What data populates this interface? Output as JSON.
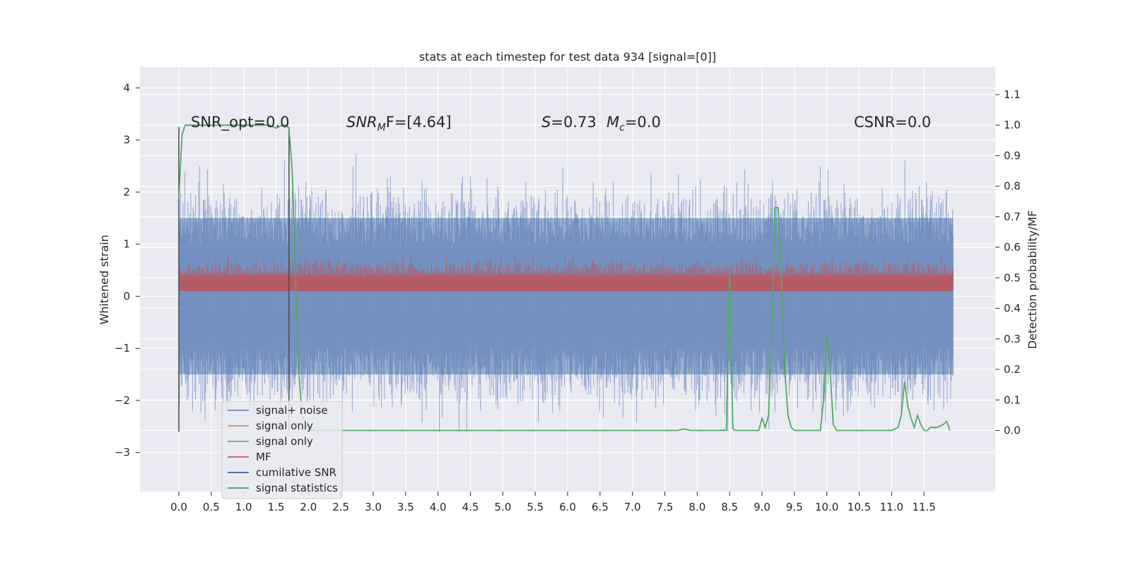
{
  "chart_data": {
    "type": "line",
    "title": "stats at each timestep for test data 934 [signal=[0]]",
    "ylabel": "Whitened strain",
    "ylabel_right": "Detection probability/MF",
    "xlim": [
      -0.6,
      12.6
    ],
    "ylim": [
      -3.75,
      4.4
    ],
    "ylim_right": [
      -0.2,
      1.19
    ],
    "x_ticks": [
      "0.0",
      "0.5",
      "1.0",
      "1.5",
      "2.0",
      "2.5",
      "3.0",
      "3.5",
      "4.0",
      "4.5",
      "5.0",
      "5.5",
      "6.0",
      "6.5",
      "7.0",
      "7.5",
      "8.0",
      "8.5",
      "9.0",
      "9.5",
      "10.0",
      "10.5",
      "11.0",
      "11.5"
    ],
    "y_ticks": [
      "4",
      "3",
      "2",
      "1",
      "0",
      "−1",
      "−2",
      "−3"
    ],
    "y_ticks_right": [
      "1.1",
      "1.0",
      "0.9",
      "0.8",
      "0.7",
      "0.6",
      "0.5",
      "0.4",
      "0.3",
      "0.2",
      "0.1",
      "0.0"
    ],
    "grid": true,
    "legend_position": "lower-left",
    "annotations": {
      "snr_opt": "SNR_opt=0.0",
      "snr_mf_base": "SNR",
      "snr_mf_sub": "M",
      "snr_mf_rest": "F=[4.64]",
      "s_label": "S",
      "s_value": "=0.73",
      "mc_base": "M",
      "mc_sub": "c",
      "mc_value": "=0.0",
      "csnr": "CSNR=0.0"
    },
    "series": [
      {
        "name": "signal+ noise",
        "color": "#4c72b0",
        "description_range": [
          -2.6,
          4.1
        ],
        "noise_amplitude": 1.5
      },
      {
        "name": "signal only",
        "color": "#dd8452"
      },
      {
        "name": "signal only",
        "color": "#55a868"
      },
      {
        "name": "MF",
        "color": "#c44e52",
        "band_range": [
          0.1,
          0.85
        ]
      },
      {
        "name": "cumilative SNR",
        "color": "#4c72b0"
      },
      {
        "name": "signal statistics",
        "color": "#55a868",
        "x": [
          0.0,
          0.05,
          0.1,
          0.3,
          0.5,
          0.8,
          1.0,
          1.2,
          1.4,
          1.5,
          1.6,
          1.65,
          1.7,
          1.75,
          1.8,
          1.85,
          1.9,
          2.0,
          3.0,
          4.0,
          5.0,
          6.0,
          7.0,
          7.7,
          7.8,
          7.9,
          8.0,
          8.3,
          8.45,
          8.5,
          8.55,
          8.6,
          8.8,
          8.95,
          9.0,
          9.05,
          9.1,
          9.15,
          9.2,
          9.25,
          9.3,
          9.35,
          9.4,
          9.45,
          9.5,
          9.6,
          9.7,
          9.8,
          9.9,
          9.95,
          10.0,
          10.05,
          10.1,
          10.15,
          10.2,
          10.3,
          10.5,
          10.8,
          11.0,
          11.1,
          11.15,
          11.2,
          11.25,
          11.3,
          11.35,
          11.4,
          11.45,
          11.5,
          11.55,
          11.6,
          11.7,
          11.8,
          11.85,
          11.9
        ],
        "values": [
          0.76,
          0.97,
          1.0,
          1.0,
          1.0,
          1.0,
          1.0,
          1.0,
          1.0,
          0.99,
          1.0,
          1.0,
          0.99,
          0.85,
          0.5,
          0.2,
          0.05,
          0.0,
          0.0,
          0.0,
          0.0,
          0.0,
          0.0,
          0.0,
          0.005,
          0.0,
          0.0,
          0.0,
          0.001,
          0.52,
          0.005,
          0.0,
          0.0,
          0.0,
          0.04,
          0.01,
          0.05,
          0.3,
          0.73,
          0.73,
          0.5,
          0.2,
          0.05,
          0.01,
          0.0,
          0.0,
          0.0,
          0.0,
          0.0,
          0.1,
          0.32,
          0.2,
          0.02,
          0.0,
          0.0,
          0.0,
          0.0,
          0.0,
          0.0,
          0.01,
          0.05,
          0.16,
          0.08,
          0.04,
          0.01,
          0.05,
          0.02,
          0.0,
          0.0,
          0.01,
          0.01,
          0.02,
          0.03,
          0.0
        ]
      }
    ],
    "vertical_lines_x": [
      0.0,
      1.7
    ]
  }
}
